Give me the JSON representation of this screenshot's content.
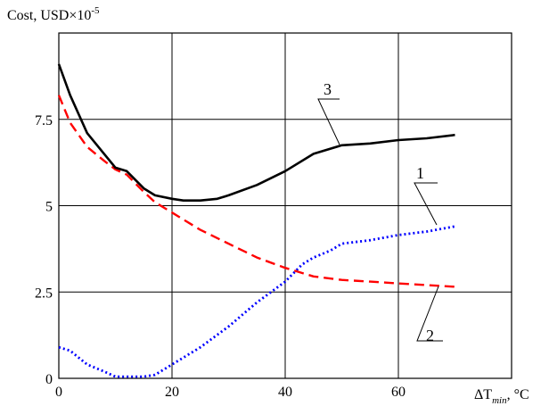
{
  "chart_data": {
    "type": "line",
    "ylabel": {
      "main": "Cost, USD×10",
      "sup": "-5"
    },
    "xlabel": {
      "pre": "ΔT",
      "sub": "min",
      "post": ", °C"
    },
    "xlim": [
      0,
      80
    ],
    "ylim": [
      0,
      10
    ],
    "x_ticks": [
      0,
      20,
      40,
      60
    ],
    "y_ticks": [
      0,
      2.5,
      5,
      7.5
    ],
    "x_tick_labels": [
      "0",
      "20",
      "40",
      "60"
    ],
    "y_tick_labels": [
      "0",
      "2.5",
      "5",
      "7.5"
    ],
    "grid": true,
    "series": [
      {
        "name": "1",
        "color": "#0000ff",
        "style": "dotted",
        "x": [
          0,
          2,
          5,
          8,
          10,
          12,
          15,
          17,
          20,
          25,
          30,
          35,
          40,
          43,
          45,
          48,
          50,
          55,
          60,
          65,
          70
        ],
        "y": [
          0.9,
          0.8,
          0.4,
          0.2,
          0.05,
          0.05,
          0.05,
          0.1,
          0.4,
          0.9,
          1.5,
          2.2,
          2.8,
          3.3,
          3.5,
          3.7,
          3.9,
          4.0,
          4.15,
          4.25,
          4.4
        ]
      },
      {
        "name": "2",
        "color": "#ff0000",
        "style": "dashed",
        "x": [
          0,
          2,
          5,
          8,
          10,
          12,
          15,
          17,
          20,
          25,
          30,
          35,
          40,
          45,
          50,
          55,
          60,
          65,
          70
        ],
        "y": [
          8.2,
          7.4,
          6.7,
          6.3,
          6.05,
          5.9,
          5.4,
          5.1,
          4.8,
          4.3,
          3.9,
          3.5,
          3.2,
          2.95,
          2.85,
          2.8,
          2.75,
          2.7,
          2.65
        ]
      },
      {
        "name": "3",
        "color": "#000000",
        "style": "solid",
        "x": [
          0,
          2,
          5,
          8,
          10,
          12,
          15,
          17,
          20,
          22,
          25,
          28,
          30,
          35,
          40,
          45,
          50,
          55,
          60,
          65,
          70
        ],
        "y": [
          9.1,
          8.2,
          7.1,
          6.5,
          6.1,
          6.0,
          5.5,
          5.3,
          5.2,
          5.15,
          5.15,
          5.2,
          5.3,
          5.6,
          6.0,
          6.5,
          6.75,
          6.8,
          6.9,
          6.95,
          7.05
        ]
      }
    ],
    "annotations": [
      {
        "text": "3",
        "series": "3"
      },
      {
        "text": "1",
        "series": "1"
      },
      {
        "text": "2",
        "series": "2"
      }
    ]
  }
}
